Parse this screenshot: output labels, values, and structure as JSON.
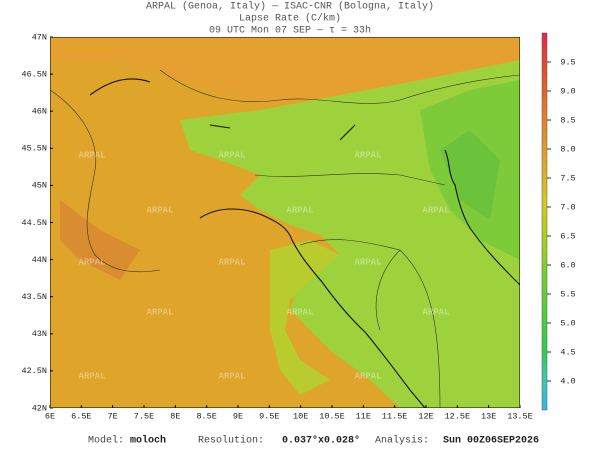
{
  "header": {
    "line1": "ARPAL (Genoa, Italy)  —  ISAC-CNR (Bologna, Italy)",
    "line2": "Lapse Rate (C/km)",
    "line3": "09 UTC Mon 07 SEP  —  τ = 33h"
  },
  "map": {
    "lon_labels": [
      "6E",
      "6.5E",
      "7E",
      "7.5E",
      "8E",
      "8.5E",
      "9E",
      "9.5E",
      "10E",
      "10.5E",
      "11E",
      "11.5E",
      "12E",
      "12.5E",
      "13E",
      "13.5E"
    ],
    "lat_labels": [
      "47N",
      "46.5N",
      "46N",
      "45.5N",
      "45N",
      "44.5N",
      "44N",
      "43.5N",
      "43N",
      "42.5N",
      "42N"
    ],
    "watermark": "ARPAL"
  },
  "colorbar": {
    "range": [
      3.5,
      10
    ],
    "ticks": [
      9.5,
      {
        "value": 9,
        "label": "9.0"
      },
      8.5,
      {
        "value": 8,
        "label": "8.0"
      },
      7.5,
      {
        "value": 7,
        "label": "7.0"
      },
      6.5,
      {
        "value": 6,
        "label": "6.0"
      },
      5.5,
      {
        "value": 5,
        "label": "5.0"
      },
      4.5,
      {
        "value": 4,
        "label": "4.0"
      }
    ]
  },
  "footer": {
    "model_label": "Model:",
    "model": "moloch",
    "resolution_label": "Resolution:",
    "resolution": "0.037°x0.028°",
    "analysis_label": "Analysis:",
    "analysis": "Sun 00Z06SEP2026"
  }
}
